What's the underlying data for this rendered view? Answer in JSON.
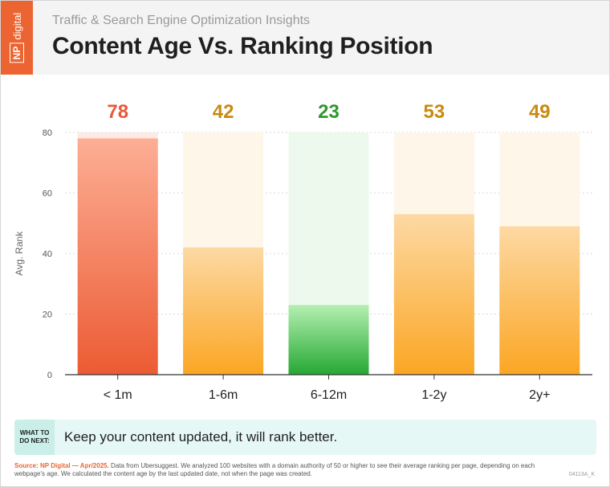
{
  "header": {
    "logo_box": "NP",
    "logo_text": "digital",
    "subtitle": "Traffic & Search Engine Optimization Insights",
    "title": "Content Age Vs. Ranking Position"
  },
  "chart_data": {
    "type": "bar",
    "categories": [
      "< 1m",
      "1-6m",
      "6-12m",
      "1-2y",
      "2y+"
    ],
    "values": [
      78,
      42,
      23,
      53,
      49
    ],
    "value_labels": [
      "78",
      "42",
      "23",
      "53",
      "49"
    ],
    "xlabel": "",
    "ylabel": "Avg. Rank",
    "ylim": [
      0,
      80
    ],
    "yticks": [
      "0",
      "20",
      "40",
      "60",
      "80"
    ],
    "grid": true,
    "legend": "none",
    "colors": {
      "red_top": "#fcae95",
      "red_bottom": "#ec5b33",
      "red_label": "#e8593a",
      "orange_top": "#fdd9a4",
      "orange_bottom": "#fba623",
      "orange_label": "#c98a10",
      "green_top": "#b4f0b1",
      "green_bottom": "#26a833",
      "green_label": "#2c9a2c",
      "orange_ghost": "#fff6ea",
      "green_ghost": "#edf9ed",
      "red_ghost": "#fdeae3"
    },
    "bar_styles": [
      "red",
      "orange",
      "green",
      "orange",
      "orange"
    ]
  },
  "callout": {
    "tag": "WHAT TO\nDO NEXT:",
    "text": "Keep your content updated, it will rank better."
  },
  "footer": {
    "source_label": "Source:",
    "source_org": " NP Digital — Apr/2025.",
    "source_text": " Data from Ubersuggest. We analyzed 100 websites with a domain authority of 50 or higher to see their average ranking per page, depending on each webpage's age. We calculated the content age by the last updated date, not when the page was created.",
    "code": "04113A_K"
  }
}
